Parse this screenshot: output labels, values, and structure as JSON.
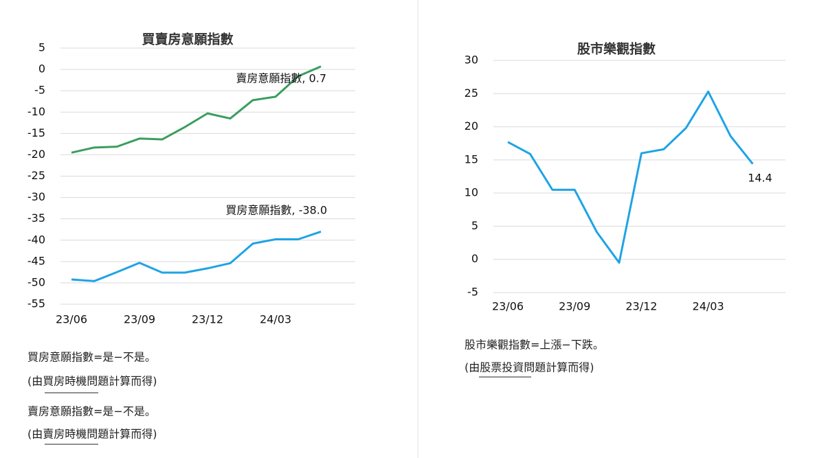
{
  "chart_data": [
    {
      "type": "line",
      "title": "買賣房意願指數",
      "categories": [
        "23/06",
        null,
        null,
        "23/09",
        null,
        null,
        "23/12",
        null,
        null,
        "24/03",
        null,
        null
      ],
      "series": [
        {
          "name": "賣房意願指數",
          "color": "#3a9d5d",
          "values": [
            -19.5,
            -18.3,
            -18.1,
            -16.2,
            -16.4,
            -13.5,
            -10.3,
            -11.5,
            -7.2,
            -6.4,
            -1.6,
            0.7
          ],
          "value_labels": [
            null,
            null,
            null,
            null,
            null,
            null,
            null,
            null,
            null,
            null,
            null,
            "賣房意願指數, 0.7"
          ]
        },
        {
          "name": "買房意願指數",
          "color": "#1ea3e6",
          "values": [
            -49.2,
            -49.6,
            -47.5,
            -45.3,
            -47.6,
            -47.6,
            -46.6,
            -45.4,
            -40.8,
            -39.8,
            -39.8,
            -38.0
          ],
          "value_labels": [
            null,
            null,
            null,
            null,
            null,
            null,
            null,
            null,
            null,
            null,
            null,
            "買房意願指數, -38.0"
          ]
        }
      ],
      "ylim": [
        -55,
        5
      ],
      "yticks": [
        5,
        0,
        -5,
        -10,
        -15,
        -20,
        -25,
        -30,
        -35,
        -40,
        -45,
        -50,
        -55
      ],
      "grid": true,
      "footnotes": [
        "買房意願指數=是−不是。",
        "(由買房時機問題計算而得)",
        "賣房意願指數=是−不是。",
        "(由賣房時機問題計算而得)"
      ]
    },
    {
      "type": "line",
      "title": "股市樂觀指數",
      "categories": [
        "23/06",
        null,
        null,
        "23/09",
        null,
        null,
        "23/12",
        null,
        null,
        "24/03",
        null,
        null
      ],
      "series": [
        {
          "name": "股市樂觀指數",
          "color": "#1ea3e6",
          "values": [
            17.7,
            15.9,
            10.5,
            10.5,
            4.1,
            -0.5,
            16.0,
            16.6,
            19.8,
            25.3,
            18.6,
            14.4
          ],
          "value_labels": [
            null,
            null,
            null,
            null,
            null,
            null,
            null,
            null,
            null,
            null,
            null,
            "14.4"
          ]
        }
      ],
      "ylim": [
        -5,
        30
      ],
      "yticks": [
        30,
        25,
        20,
        15,
        10,
        5,
        0,
        -5
      ],
      "grid": true,
      "footnotes": [
        "股市樂觀指數=上漲−下跌。",
        "(由股票投資問題計算而得)"
      ]
    }
  ]
}
